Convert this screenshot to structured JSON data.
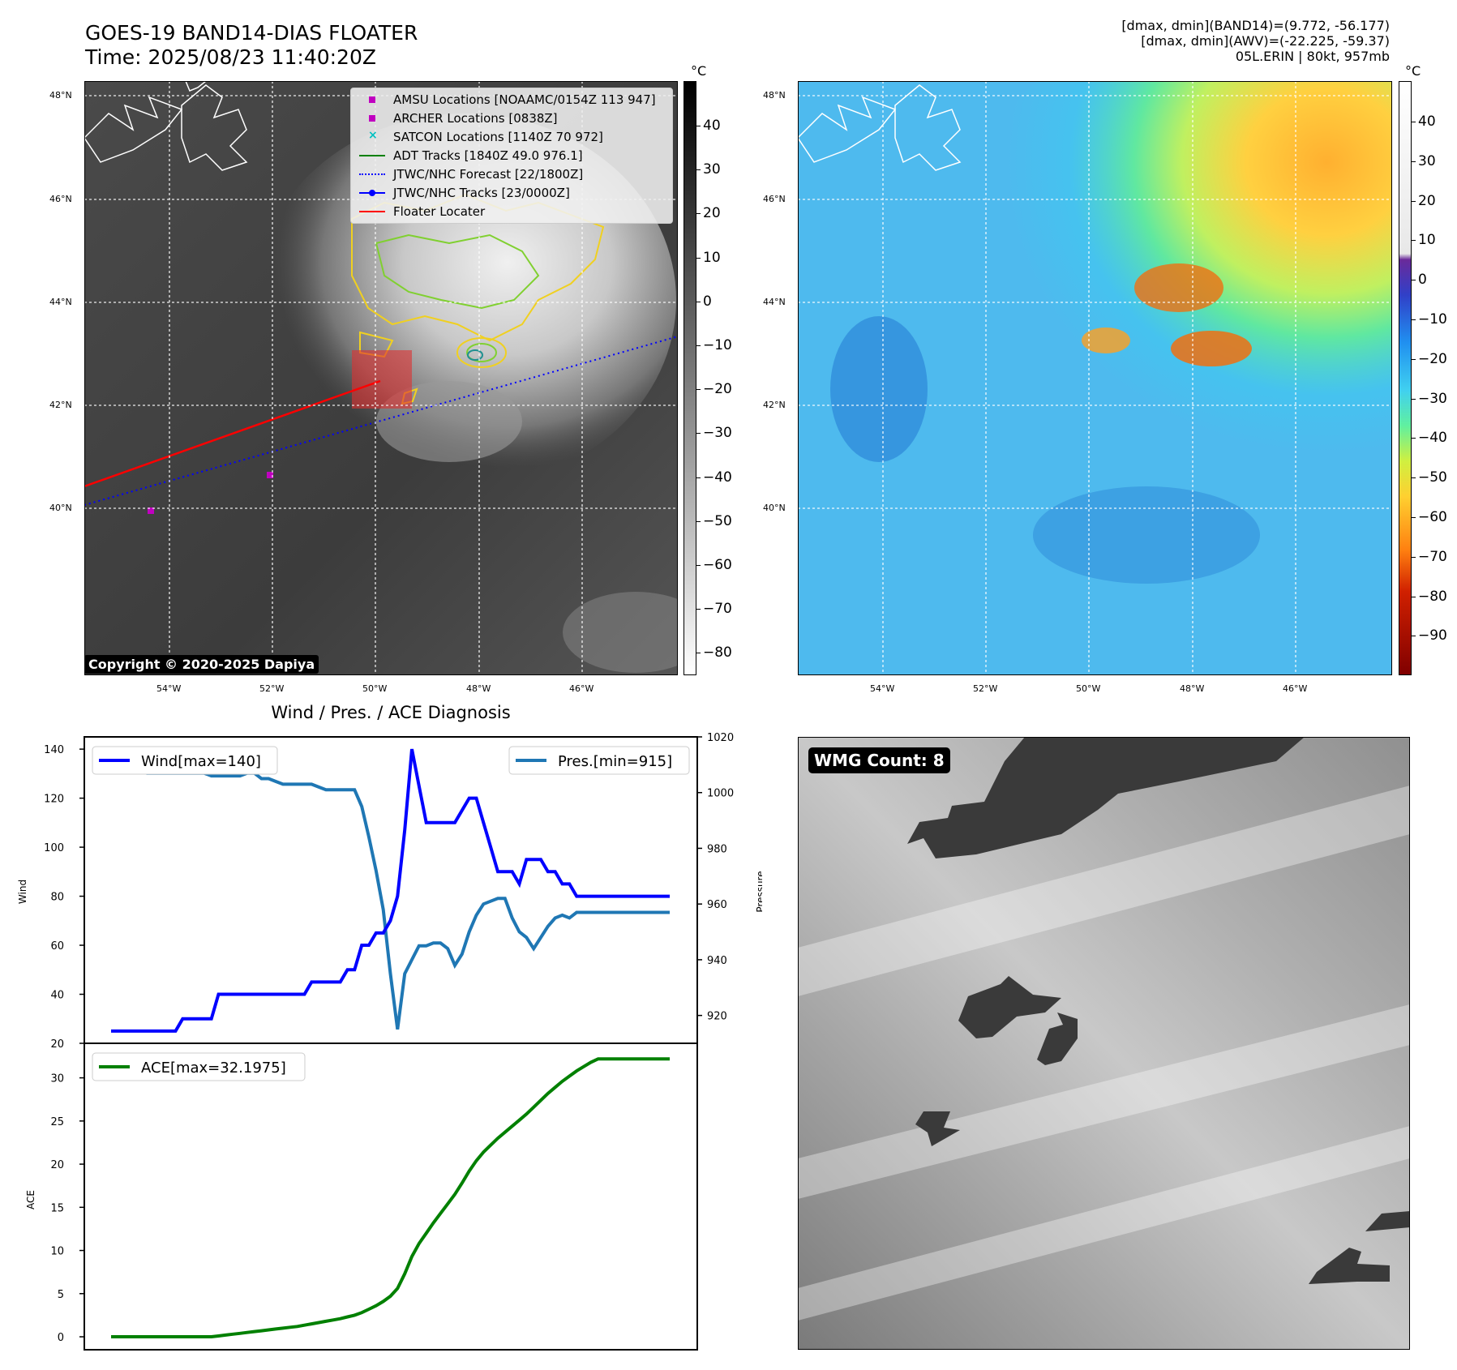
{
  "header": {
    "title_line1": "GOES-19 BAND14-DIAS FLOATER",
    "title_line2": "Time: 2025/08/23 11:40:20Z",
    "info_line1": "[dmax, dmin](BAND14)=(9.772, -56.177)",
    "info_line2": "[dmax, dmin](AWV)=(-22.225, -59.37)",
    "info_line3": "05L.ERIN | 80kt, 957mb"
  },
  "map_axes": {
    "lat_labels": [
      "48°N",
      "46°N",
      "44°N",
      "42°N",
      "40°N"
    ],
    "lon_labels": [
      "54°W",
      "52°W",
      "50°W",
      "48°W",
      "46°W"
    ]
  },
  "ir_panel": {
    "colorbar_unit": "°C",
    "colorbar_ticks": [
      "40",
      "30",
      "20",
      "10",
      "0",
      "−10",
      "−20",
      "−30",
      "−40",
      "−50",
      "−60",
      "−70",
      "−80"
    ],
    "copyright": "Copyright © 2020-2025 Dapiya",
    "legend": [
      {
        "label": "AMSU Locations [NOAAMC/0154Z 113 947]",
        "color": "#c000c0",
        "marker": "square"
      },
      {
        "label": "ARCHER Locations [0838Z]",
        "color": "#c000c0",
        "marker": "square"
      },
      {
        "label": "SATCON Locations [1140Z 70 972]",
        "color": "#00c0c0",
        "marker": "x"
      },
      {
        "label": "ADT Tracks [1840Z 49.0 976.1]",
        "color": "#008000",
        "marker": "line"
      },
      {
        "label": "JTWC/NHC Forecast [22/1800Z]",
        "color": "#0000ff",
        "marker": "dotted"
      },
      {
        "label": "JTWC/NHC Tracks [23/0000Z]",
        "color": "#0000ff",
        "marker": "line-dot"
      },
      {
        "label": "Floater Locater",
        "color": "#ff0000",
        "marker": "line"
      }
    ]
  },
  "awv_panel": {
    "colorbar_unit": "°C",
    "colorbar_ticks": [
      "40",
      "30",
      "20",
      "10",
      "0",
      "−10",
      "−20",
      "−30",
      "−40",
      "−50",
      "−60",
      "−70",
      "−80",
      "−90"
    ]
  },
  "diagnosis": {
    "title": "Wind / Pres. / ACE Diagnosis",
    "wind_axis_label": "Wind",
    "pressure_axis_label": "Pressure",
    "ace_axis_label": "ACE",
    "wind_legend": "Wind[max=140]",
    "pres_legend": "Pres.[min=915]",
    "ace_legend": "ACE[max=32.1975]",
    "wind_ticks": [
      "140",
      "120",
      "100",
      "80",
      "60",
      "40",
      "20"
    ],
    "pressure_ticks": [
      "1020",
      "1000",
      "980",
      "960",
      "940",
      "920"
    ],
    "ace_ticks": [
      "30",
      "25",
      "20",
      "15",
      "10",
      "5",
      "0"
    ]
  },
  "chart_data": [
    {
      "type": "line",
      "title": "Wind / Pres. / ACE Diagnosis",
      "ylabel": "Wind",
      "y2label": "Pressure",
      "ylim": [
        20,
        145
      ],
      "y2lim": [
        910,
        1020
      ],
      "x": [
        0,
        1,
        2,
        3,
        4,
        5,
        6,
        7,
        8,
        9,
        10,
        11,
        12,
        13,
        14,
        15,
        16,
        17,
        18,
        19,
        20,
        21,
        22,
        23,
        24,
        25,
        26,
        27,
        28,
        29,
        30,
        31,
        32,
        33,
        34,
        35,
        36,
        37,
        38,
        39,
        40,
        41,
        42,
        43,
        44,
        45,
        46,
        47,
        48,
        49,
        50,
        51,
        52,
        53,
        54,
        55,
        56,
        57,
        58,
        59,
        60,
        61,
        62,
        63,
        64,
        65,
        66,
        67,
        68,
        69,
        70,
        71,
        72,
        73,
        74,
        75,
        76,
        77,
        78
      ],
      "series": [
        {
          "name": "Wind[max=140]",
          "color": "#0000ff",
          "values": [
            25,
            25,
            25,
            25,
            25,
            25,
            25,
            25,
            25,
            25,
            30,
            30,
            30,
            30,
            30,
            40,
            40,
            40,
            40,
            40,
            40,
            40,
            40,
            40,
            40,
            40,
            40,
            40,
            45,
            45,
            45,
            45,
            45,
            50,
            50,
            60,
            60,
            65,
            65,
            70,
            80,
            107,
            140,
            125,
            110,
            110,
            110,
            110,
            110,
            115,
            120,
            120,
            110,
            100,
            90,
            90,
            90,
            85,
            95,
            95,
            95,
            90,
            90,
            85,
            85,
            80,
            80,
            80,
            80,
            80,
            80,
            80,
            80,
            80,
            80,
            80,
            80,
            80,
            80
          ]
        },
        {
          "name": "Pres.[min=915]",
          "color": "#1f77b4",
          "axis": "y2",
          "values": [
            1015,
            1015,
            1010,
            1009,
            1008,
            1007,
            1007,
            1007,
            1007,
            1007,
            1007,
            1007,
            1007,
            1007,
            1006,
            1006,
            1006,
            1006,
            1006,
            1007,
            1007,
            1005,
            1005,
            1004,
            1003,
            1003,
            1003,
            1003,
            1003,
            1002,
            1001,
            1001,
            1001,
            1001,
            1001,
            995,
            984,
            972,
            958,
            935,
            915,
            935,
            940,
            945,
            945,
            946,
            946,
            944,
            938,
            942,
            950,
            956,
            960,
            961,
            962,
            962,
            955,
            950,
            948,
            944,
            948,
            952,
            955,
            956,
            955,
            957,
            957,
            957,
            957,
            957,
            957,
            957,
            957,
            957,
            957,
            957,
            957,
            957,
            957
          ]
        }
      ]
    },
    {
      "type": "area",
      "ylabel": "ACE",
      "ylim": [
        -1.5,
        34
      ],
      "x": [
        0,
        1,
        2,
        3,
        4,
        5,
        6,
        7,
        8,
        9,
        10,
        11,
        12,
        13,
        14,
        15,
        16,
        17,
        18,
        19,
        20,
        21,
        22,
        23,
        24,
        25,
        26,
        27,
        28,
        29,
        30,
        31,
        32,
        33,
        34,
        35,
        36,
        37,
        38,
        39,
        40,
        41,
        42,
        43,
        44,
        45,
        46,
        47,
        48,
        49,
        50,
        51,
        52,
        53,
        54,
        55,
        56,
        57,
        58,
        59,
        60,
        61,
        62,
        63,
        64,
        65,
        66,
        67,
        68,
        69,
        70,
        71,
        72,
        73,
        74,
        75,
        76,
        77,
        78
      ],
      "series": [
        {
          "name": "ACE[max=32.1975]",
          "color": "#008000",
          "values": [
            0,
            0,
            0,
            0,
            0,
            0,
            0,
            0,
            0,
            0,
            0,
            0,
            0,
            0,
            0,
            0.1,
            0.2,
            0.3,
            0.4,
            0.5,
            0.6,
            0.7,
            0.8,
            0.9,
            1.0,
            1.1,
            1.2,
            1.35,
            1.5,
            1.65,
            1.8,
            1.95,
            2.1,
            2.3,
            2.5,
            2.8,
            3.2,
            3.6,
            4.1,
            4.7,
            5.6,
            7.3,
            9.3,
            10.8,
            12.0,
            13.2,
            14.3,
            15.4,
            16.5,
            17.8,
            19.2,
            20.4,
            21.4,
            22.2,
            23.0,
            23.7,
            24.4,
            25.1,
            25.8,
            26.6,
            27.4,
            28.2,
            28.9,
            29.6,
            30.2,
            30.8,
            31.3,
            31.8,
            32.2,
            32.2,
            32.2,
            32.2,
            32.2,
            32.2,
            32.2,
            32.2,
            32.2,
            32.2,
            32.2
          ]
        }
      ]
    }
  ],
  "wmg_panel": {
    "label": "WMG Count: 8"
  }
}
